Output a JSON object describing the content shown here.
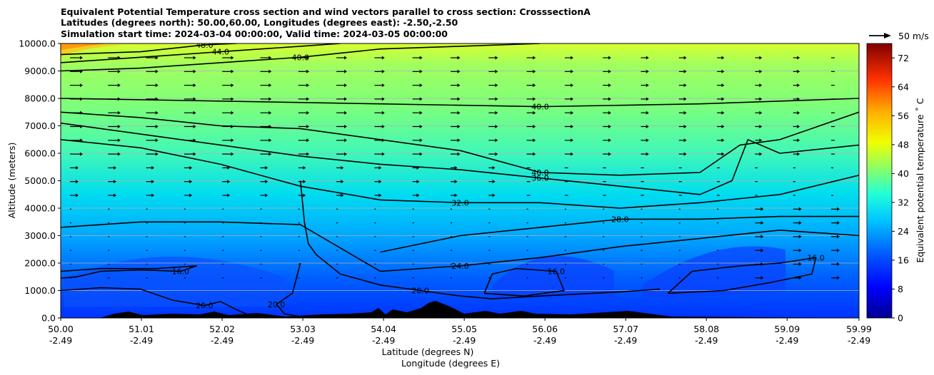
{
  "chart_data": {
    "type": "contour",
    "title_lines": [
      "Equivalent Potential Temperature cross section and wind vectors parallel to cross section: CrosssectionA",
      "Latitudes (degrees north): 50.00,60.00, Longitudes (degrees east): -2.50,-2.50",
      "Simulation start time: 2024-03-04 00:00:00, Valid time: 2024-03-05 00:00:00"
    ],
    "ylabel": "Altitude (meters)",
    "xlabel_1": "Latitude (degrees N)",
    "xlabel_2": "Longitude (degrees E)",
    "ylim": [
      0,
      10000
    ],
    "xlim": [
      50.0,
      59.99
    ],
    "yticks": [
      "0.0",
      "1000.0",
      "2000.0",
      "3000.0",
      "4000.0",
      "5000.0",
      "6000.0",
      "7000.0",
      "8000.0",
      "9000.0",
      "10000.0"
    ],
    "xticks": [
      {
        "lat": "50.00",
        "lon": "-2.49"
      },
      {
        "lat": "51.01",
        "lon": "-2.49"
      },
      {
        "lat": "52.02",
        "lon": "-2.49"
      },
      {
        "lat": "53.03",
        "lon": "-2.49"
      },
      {
        "lat": "54.04",
        "lon": "-2.49"
      },
      {
        "lat": "55.05",
        "lon": "-2.49"
      },
      {
        "lat": "56.06",
        "lon": "-2.49"
      },
      {
        "lat": "57.07",
        "lon": "-2.49"
      },
      {
        "lat": "58.08",
        "lon": "-2.49"
      },
      {
        "lat": "59.09",
        "lon": "-2.49"
      },
      {
        "lat": "59.99",
        "lon": "-2.49"
      }
    ],
    "colorbar": {
      "label": "Equivalent potential temperature ˚ C",
      "min": 0,
      "max": 76,
      "ticks": [
        "0",
        "8",
        "16",
        "24",
        "32",
        "40",
        "48",
        "56",
        "64",
        "72"
      ]
    },
    "quiver_key": "50 m/s",
    "contour_levels": [
      {
        "value": "16.0",
        "points": [
          [
            50.0,
            1450
          ],
          [
            50.2,
            1500
          ],
          [
            50.5,
            1700
          ],
          [
            51.0,
            1750
          ],
          [
            51.5,
            1700
          ],
          [
            51.7,
            1900
          ],
          [
            51.2,
            1800
          ],
          [
            50.5,
            1800
          ],
          [
            50.0,
            1700
          ]
        ]
      },
      {
        "value": "20.0",
        "points": [
          [
            50.0,
            1000
          ],
          [
            50.5,
            1100
          ],
          [
            51.0,
            1050
          ],
          [
            51.4,
            650
          ],
          [
            51.8,
            450
          ],
          [
            52.0,
            600
          ],
          [
            52.2,
            300
          ],
          [
            52.4,
            50
          ]
        ]
      },
      {
        "value": "20.0",
        "points": [
          [
            53.0,
            2000
          ],
          [
            52.9,
            900
          ],
          [
            52.7,
            500
          ],
          [
            52.8,
            150
          ],
          [
            53.1,
            0
          ]
        ]
      },
      {
        "value": "20.0",
        "points": [
          [
            53.0,
            5000
          ],
          [
            53.05,
            3500
          ],
          [
            53.1,
            2700
          ],
          [
            53.2,
            2300
          ],
          [
            53.5,
            1600
          ],
          [
            54.0,
            1200
          ],
          [
            54.5,
            1000
          ],
          [
            55.0,
            800
          ],
          [
            55.4,
            700
          ],
          [
            56.0,
            800
          ],
          [
            57.0,
            950
          ],
          [
            57.5,
            1050
          ]
        ]
      },
      {
        "value": "16.0",
        "points": [
          [
            55.3,
            900
          ],
          [
            55.4,
            1600
          ],
          [
            55.7,
            1800
          ],
          [
            56.2,
            1700
          ],
          [
            56.3,
            1000
          ],
          [
            55.8,
            800
          ],
          [
            55.3,
            900
          ]
        ]
      },
      {
        "value": "16.0",
        "points": [
          [
            57.6,
            900
          ],
          [
            57.9,
            1700
          ],
          [
            58.5,
            1900
          ],
          [
            59.0,
            2000
          ],
          [
            59.45,
            2200
          ],
          [
            59.4,
            1600
          ],
          [
            58.9,
            1300
          ],
          [
            58.3,
            1000
          ],
          [
            57.6,
            900
          ]
        ]
      },
      {
        "value": "24.0",
        "points": [
          [
            50.0,
            3300
          ],
          [
            51.0,
            3500
          ],
          [
            52.0,
            3500
          ],
          [
            53.0,
            3400
          ],
          [
            54.0,
            1700
          ],
          [
            55.0,
            1900
          ],
          [
            56.0,
            2200
          ],
          [
            57.0,
            2600
          ],
          [
            58.0,
            2900
          ],
          [
            59.0,
            3200
          ],
          [
            59.99,
            3000
          ]
        ]
      },
      {
        "value": "28.0",
        "points": [
          [
            54.0,
            2400
          ],
          [
            55.0,
            3000
          ],
          [
            56.0,
            3300
          ],
          [
            57.0,
            3600
          ],
          [
            58.0,
            3600
          ],
          [
            59.0,
            3700
          ],
          [
            59.99,
            3700
          ]
        ]
      },
      {
        "value": "32.0",
        "points": [
          [
            50.0,
            6500
          ],
          [
            51.0,
            6200
          ],
          [
            52.0,
            5600
          ],
          [
            53.0,
            4800
          ],
          [
            54.0,
            4300
          ],
          [
            55.0,
            4200
          ],
          [
            56.0,
            4200
          ],
          [
            57.0,
            4000
          ],
          [
            58.0,
            4200
          ],
          [
            59.0,
            4500
          ],
          [
            59.99,
            5200
          ]
        ]
      },
      {
        "value": "36.0",
        "points": [
          [
            50.0,
            7100
          ],
          [
            51.0,
            6700
          ],
          [
            52.0,
            6300
          ],
          [
            53.0,
            5900
          ],
          [
            54.0,
            5600
          ],
          [
            55.0,
            5400
          ],
          [
            56.0,
            5100
          ],
          [
            57.0,
            4800
          ],
          [
            58.0,
            4500
          ],
          [
            58.4,
            5000
          ],
          [
            58.6,
            6500
          ],
          [
            59.0,
            6000
          ],
          [
            59.99,
            6300
          ]
        ]
      },
      {
        "value": "40.0",
        "points": [
          [
            50.0,
            7500
          ],
          [
            51.0,
            7300
          ],
          [
            52.0,
            7000
          ],
          [
            53.0,
            6900
          ],
          [
            54.0,
            6500
          ],
          [
            55.0,
            6100
          ],
          [
            56.0,
            5300
          ],
          [
            57.0,
            5200
          ],
          [
            58.0,
            5300
          ],
          [
            58.5,
            6300
          ],
          [
            59.0,
            6500
          ],
          [
            59.99,
            7500
          ]
        ]
      },
      {
        "value": "40.0",
        "points": [
          [
            50.0,
            8000
          ],
          [
            52.0,
            7900
          ],
          [
            54.0,
            7800
          ],
          [
            56.0,
            7700
          ],
          [
            58.0,
            7800
          ],
          [
            59.99,
            8000
          ]
        ]
      },
      {
        "value": "40.0",
        "points": [
          [
            50.0,
            9000
          ],
          [
            51.0,
            9100
          ],
          [
            52.0,
            9300
          ],
          [
            53.0,
            9500
          ],
          [
            54.0,
            9800
          ],
          [
            55.0,
            9900
          ],
          [
            56.0,
            10000
          ]
        ]
      },
      {
        "value": "44.0",
        "points": [
          [
            50.0,
            9300
          ],
          [
            51.0,
            9500
          ],
          [
            52.0,
            9700
          ],
          [
            53.0,
            9900
          ],
          [
            53.5,
            10000
          ]
        ]
      },
      {
        "value": "48.0",
        "points": [
          [
            50.0,
            9600
          ],
          [
            51.0,
            9700
          ],
          [
            51.8,
            9950
          ],
          [
            52.2,
            10000
          ]
        ]
      }
    ]
  }
}
